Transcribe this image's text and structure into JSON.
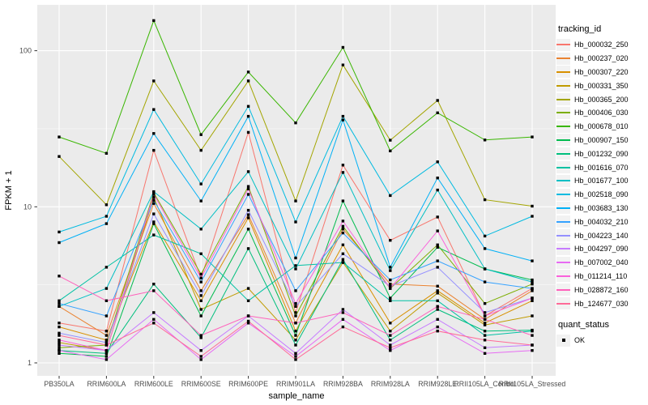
{
  "figure": {
    "background": "#FFFFFF",
    "panel_background": "#EBEBEB",
    "grid_color": "#FFFFFF",
    "tick_color": "#333333",
    "tick_label_color": "#4D4D4D",
    "axis_title_color": "#000000"
  },
  "chart_data": {
    "type": "line",
    "title": "",
    "xlabel": "sample_name",
    "ylabel": "FPKM + 1",
    "y_scale": "log10",
    "y_ticks": [
      "1",
      "10",
      "100"
    ],
    "y_tick_values": [
      1,
      10,
      100
    ],
    "y_minor_gridline_values": [
      3.1623,
      31.623
    ],
    "ylim": [
      0.83,
      197
    ],
    "grid": "on",
    "legend_position": "right",
    "point_marker": {
      "shape": "square",
      "color": "#000000",
      "size": 3.4
    },
    "categories": [
      "PB350LA",
      "RRIM600LA",
      "RRIM600LE",
      "RRIM600SE",
      "RRIM600PE",
      "RRIM901LA",
      "RRIM928BA",
      "RRIM928LA",
      "RRIM928LE",
      "RRII105LA_Control",
      "RRII105LA_Stressed"
    ],
    "series": [
      {
        "name": "Hb_000032_250",
        "color": "#F8766D",
        "values": [
          1.8,
          1.6,
          23,
          3.5,
          30,
          2.1,
          18.5,
          6.1,
          8.6,
          2.0,
          3.0
        ]
      },
      {
        "name": "Hb_000237_020",
        "color": "#EA8331",
        "values": [
          2.3,
          1.5,
          10.5,
          2.9,
          8.9,
          1.8,
          7.2,
          3.2,
          3.1,
          1.9,
          2.9
        ]
      },
      {
        "name": "Hb_000307_220",
        "color": "#D89000",
        "values": [
          1.7,
          1.4,
          8.0,
          2.5,
          8.5,
          1.6,
          5.7,
          1.8,
          2.9,
          1.8,
          2.5
        ]
      },
      {
        "name": "Hb_000331_350",
        "color": "#C09B00",
        "values": [
          1.35,
          1.2,
          11.5,
          2.2,
          3.0,
          1.4,
          4.4,
          1.6,
          2.8,
          1.75,
          2.0
        ]
      },
      {
        "name": "Hb_000365_200",
        "color": "#A3A500",
        "values": [
          21,
          10.3,
          64,
          23,
          64,
          10.9,
          81,
          26.7,
          48,
          11.1,
          10.1
        ]
      },
      {
        "name": "Hb_000406_030",
        "color": "#7CAE00",
        "values": [
          1.25,
          1.3,
          12.3,
          3.7,
          13.5,
          2.0,
          7.5,
          3.0,
          5.7,
          2.4,
          3.2
        ]
      },
      {
        "name": "Hb_000678_010",
        "color": "#39B600",
        "values": [
          28,
          22,
          156,
          29,
          73,
          34.5,
          105,
          22.8,
          40,
          26.8,
          28
        ]
      },
      {
        "name": "Hb_000907_150",
        "color": "#00BB4E",
        "values": [
          1.15,
          1.1,
          7.8,
          2.0,
          7.2,
          1.5,
          10.9,
          2.6,
          5.5,
          4.0,
          3.4
        ]
      },
      {
        "name": "Hb_001232_090",
        "color": "#00BF7D",
        "values": [
          1.2,
          1.15,
          3.2,
          1.45,
          5.4,
          1.3,
          4.6,
          1.4,
          2.2,
          1.6,
          1.62
        ]
      },
      {
        "name": "Hb_001616_070",
        "color": "#00C1A3",
        "values": [
          2.5,
          4.1,
          6.6,
          5.0,
          2.5,
          4.2,
          4.4,
          2.5,
          2.5,
          1.5,
          1.6
        ]
      },
      {
        "name": "Hb_001677_100",
        "color": "#00BFC4",
        "values": [
          2.3,
          3.0,
          12.5,
          7.2,
          16.8,
          4.0,
          16.6,
          3.9,
          12.8,
          4.0,
          3.3
        ]
      },
      {
        "name": "Hb_002518_090",
        "color": "#00BAE0",
        "values": [
          6.9,
          8.7,
          42,
          14,
          44,
          8.0,
          38,
          11.8,
          19.4,
          6.5,
          8.7
        ]
      },
      {
        "name": "Hb_003683_130",
        "color": "#00B0F6",
        "values": [
          5.9,
          7.8,
          29.5,
          10.9,
          38,
          4.7,
          36,
          4.1,
          15.3,
          5.4,
          4.5
        ]
      },
      {
        "name": "Hb_004032_210",
        "color": "#35A2FF",
        "values": [
          2.4,
          2.0,
          11.0,
          3.3,
          12.0,
          2.9,
          6.8,
          3.4,
          4.5,
          3.3,
          3.0
        ]
      },
      {
        "name": "Hb_004223_140",
        "color": "#9590FF",
        "values": [
          1.55,
          1.35,
          9.0,
          2.7,
          9.5,
          2.3,
          5.0,
          3.1,
          4.1,
          2.1,
          2.6
        ]
      },
      {
        "name": "Hb_004297_090",
        "color": "#C77CFF",
        "values": [
          1.3,
          1.2,
          2.1,
          1.2,
          2.0,
          1.15,
          2.2,
          1.3,
          1.9,
          1.25,
          1.3
        ]
      },
      {
        "name": "Hb_007002_040",
        "color": "#E76BF3",
        "values": [
          1.2,
          1.05,
          1.9,
          1.05,
          1.8,
          1.1,
          1.9,
          1.2,
          1.7,
          1.15,
          1.2
        ]
      },
      {
        "name": "Hb_011214_110",
        "color": "#FA62DB",
        "values": [
          1.4,
          1.2,
          12.0,
          3.5,
          13.0,
          2.4,
          8.1,
          3.0,
          7.0,
          2.0,
          2.6
        ]
      },
      {
        "name": "Hb_028872_160",
        "color": "#FF62BC",
        "values": [
          3.6,
          2.5,
          2.9,
          1.5,
          2.0,
          1.8,
          2.1,
          1.5,
          2.3,
          1.9,
          1.5
        ]
      },
      {
        "name": "Hb_124677_030",
        "color": "#FF6A98",
        "values": [
          1.5,
          1.3,
          1.8,
          1.1,
          1.85,
          1.05,
          1.7,
          1.25,
          1.6,
          1.4,
          1.3
        ]
      }
    ],
    "legend": {
      "tracking_title": "tracking_id",
      "quant_title": "quant_status",
      "quant_items": [
        {
          "label": "OK",
          "marker": "black-square"
        }
      ]
    }
  }
}
